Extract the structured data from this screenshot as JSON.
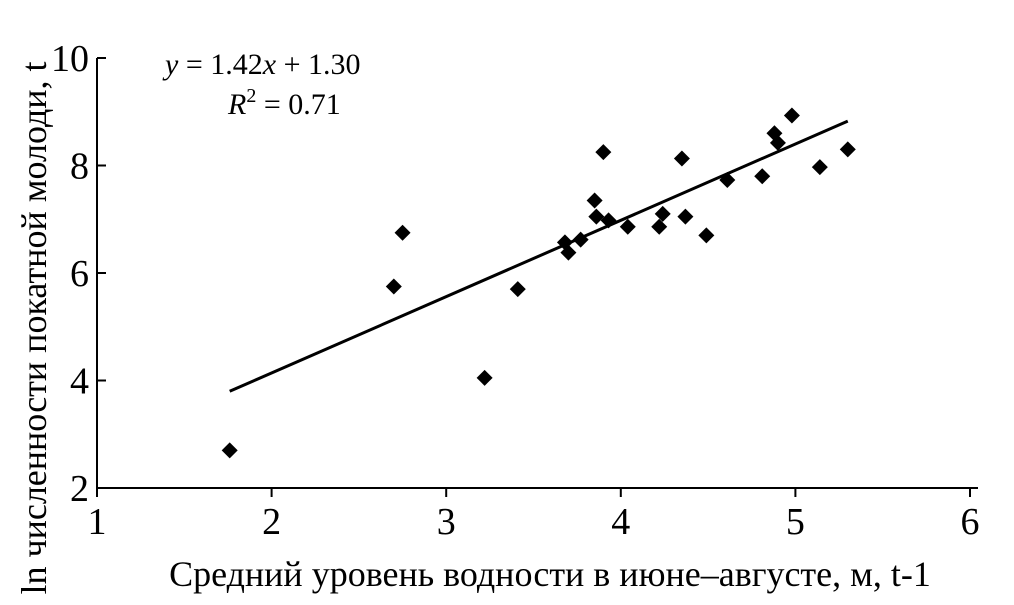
{
  "chart_data": {
    "type": "scatter",
    "xlabel": "Средний уровень водности в июне–августе, м, t-1",
    "ylabel": "ln численности покатной молоди, t",
    "xlim": [
      1,
      6
    ],
    "ylim": [
      2,
      10
    ],
    "x_ticks": [
      "1",
      "2",
      "3",
      "4",
      "5",
      "6"
    ],
    "y_ticks": [
      "2",
      "4",
      "6",
      "8",
      "10"
    ],
    "equation": {
      "y_part": "y",
      "mid_part": " = 1.42",
      "x_part": "x",
      "tail_part": " + 1.30",
      "r_symbol": "R",
      "r_exp": "2",
      "r_value": " = 0.71"
    },
    "trend_line": {
      "slope": 1.42,
      "intercept": 1.3,
      "x_start": 1.76,
      "x_end": 5.3
    },
    "points": [
      {
        "x": 1.76,
        "y": 2.7
      },
      {
        "x": 2.7,
        "y": 5.75
      },
      {
        "x": 2.75,
        "y": 6.75
      },
      {
        "x": 3.22,
        "y": 4.05
      },
      {
        "x": 3.41,
        "y": 5.7
      },
      {
        "x": 3.68,
        "y": 6.57
      },
      {
        "x": 3.7,
        "y": 6.38
      },
      {
        "x": 3.77,
        "y": 6.62
      },
      {
        "x": 3.85,
        "y": 7.35
      },
      {
        "x": 3.86,
        "y": 7.05
      },
      {
        "x": 3.9,
        "y": 8.25
      },
      {
        "x": 3.93,
        "y": 6.98
      },
      {
        "x": 4.04,
        "y": 6.86
      },
      {
        "x": 4.22,
        "y": 6.86
      },
      {
        "x": 4.24,
        "y": 7.1
      },
      {
        "x": 4.35,
        "y": 8.13
      },
      {
        "x": 4.37,
        "y": 7.05
      },
      {
        "x": 4.49,
        "y": 6.7
      },
      {
        "x": 4.61,
        "y": 7.73
      },
      {
        "x": 4.81,
        "y": 7.8
      },
      {
        "x": 4.88,
        "y": 8.6
      },
      {
        "x": 4.9,
        "y": 8.42
      },
      {
        "x": 4.98,
        "y": 8.93
      },
      {
        "x": 5.14,
        "y": 7.97
      },
      {
        "x": 5.3,
        "y": 8.3
      }
    ]
  }
}
